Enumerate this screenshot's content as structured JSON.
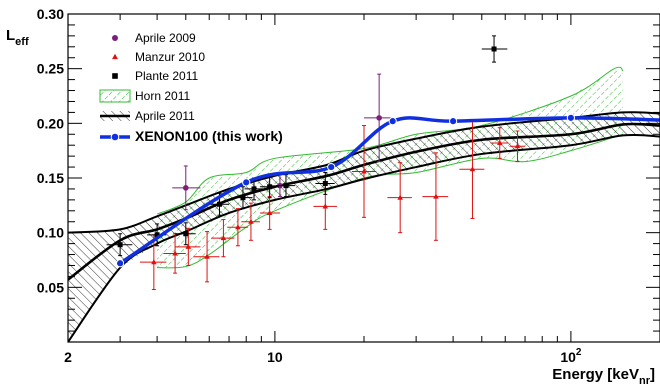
{
  "chart_data": {
    "type": "scatter",
    "xlabel": "Energy [keV",
    "xlabel_sub": "nr",
    "xlabel_end": "]",
    "ylabel": "L",
    "ylabel_sub": "eff",
    "x_scale": "log",
    "xlim": [
      2,
      200
    ],
    "ylim": [
      0.0,
      0.3
    ],
    "x_ticks": [
      {
        "value": 2,
        "label": "2"
      },
      {
        "value": 10,
        "label": "10"
      },
      {
        "value": 100,
        "label": "10",
        "sup": "2"
      }
    ],
    "y_ticks": [
      {
        "value": 0.05,
        "label": "0.05"
      },
      {
        "value": 0.1,
        "label": "0.10"
      },
      {
        "value": 0.15,
        "label": "0.15"
      },
      {
        "value": 0.2,
        "label": "0.20"
      },
      {
        "value": 0.25,
        "label": "0.25"
      },
      {
        "value": 0.3,
        "label": "0.30"
      }
    ],
    "legend_position": "top-left",
    "series": [
      {
        "name": "Aprile 2009",
        "kind": "points",
        "marker": "circle",
        "color": "#7a1f7a",
        "points": [
          {
            "x": 5.0,
            "y": 0.141,
            "xlo": 4.5,
            "xhi": 5.6,
            "ylo": 0.121,
            "yhi": 0.161
          },
          {
            "x": 10.4,
            "y": 0.143,
            "xlo": 9.6,
            "xhi": 11.2,
            "ylo": 0.133,
            "yhi": 0.153
          },
          {
            "x": 22.5,
            "y": 0.205,
            "xlo": 20.0,
            "xhi": 25.0,
            "ylo": 0.165,
            "yhi": 0.245
          }
        ]
      },
      {
        "name": "Manzur 2010",
        "kind": "points",
        "marker": "triangle",
        "color": "#e01010",
        "points": [
          {
            "x": 3.9,
            "y": 0.073,
            "xlo": 3.5,
            "xhi": 4.3,
            "ylo": 0.048,
            "yhi": 0.098
          },
          {
            "x": 4.6,
            "y": 0.081,
            "xlo": 4.2,
            "xhi": 5.0,
            "ylo": 0.063,
            "yhi": 0.099
          },
          {
            "x": 5.1,
            "y": 0.087,
            "xlo": 4.6,
            "xhi": 5.6,
            "ylo": 0.07,
            "yhi": 0.104
          },
          {
            "x": 5.9,
            "y": 0.078,
            "xlo": 5.3,
            "xhi": 6.5,
            "ylo": 0.055,
            "yhi": 0.101
          },
          {
            "x": 6.7,
            "y": 0.095,
            "xlo": 6.1,
            "xhi": 7.3,
            "ylo": 0.078,
            "yhi": 0.112
          },
          {
            "x": 7.5,
            "y": 0.105,
            "xlo": 6.9,
            "xhi": 8.1,
            "ylo": 0.088,
            "yhi": 0.122
          },
          {
            "x": 8.3,
            "y": 0.11,
            "xlo": 7.7,
            "xhi": 8.9,
            "ylo": 0.093,
            "yhi": 0.127
          },
          {
            "x": 9.6,
            "y": 0.118,
            "xlo": 8.9,
            "xhi": 10.4,
            "ylo": 0.103,
            "yhi": 0.133
          },
          {
            "x": 14.8,
            "y": 0.124,
            "xlo": 13.5,
            "xhi": 16.2,
            "ylo": 0.103,
            "yhi": 0.145
          },
          {
            "x": 20.0,
            "y": 0.156,
            "xlo": 18.2,
            "xhi": 22.0,
            "ylo": 0.114,
            "yhi": 0.198
          },
          {
            "x": 26.5,
            "y": 0.132,
            "xlo": 24.0,
            "xhi": 29.0,
            "ylo": 0.1,
            "yhi": 0.164
          },
          {
            "x": 35.0,
            "y": 0.133,
            "xlo": 31.5,
            "xhi": 38.5,
            "ylo": 0.093,
            "yhi": 0.173
          },
          {
            "x": 46.5,
            "y": 0.158,
            "xlo": 42.0,
            "xhi": 51.0,
            "ylo": 0.113,
            "yhi": 0.203
          },
          {
            "x": 57.5,
            "y": 0.182,
            "xlo": 53.5,
            "xhi": 61.5,
            "ylo": 0.168,
            "yhi": 0.196
          },
          {
            "x": 66.0,
            "y": 0.179,
            "xlo": 62.0,
            "xhi": 70.0,
            "ylo": 0.165,
            "yhi": 0.193
          }
        ]
      },
      {
        "name": "Plante 2011",
        "kind": "points",
        "marker": "square",
        "color": "#000000",
        "points": [
          {
            "x": 3.0,
            "y": 0.089,
            "xlo": 2.7,
            "xhi": 3.3,
            "ylo": 0.079,
            "yhi": 0.099
          },
          {
            "x": 4.0,
            "y": 0.098,
            "xlo": 3.7,
            "xhi": 4.3,
            "ylo": 0.088,
            "yhi": 0.108
          },
          {
            "x": 5.0,
            "y": 0.099,
            "xlo": 4.6,
            "xhi": 5.4,
            "ylo": 0.089,
            "yhi": 0.109
          },
          {
            "x": 6.5,
            "y": 0.126,
            "xlo": 6.0,
            "xhi": 7.0,
            "ylo": 0.116,
            "yhi": 0.136
          },
          {
            "x": 7.8,
            "y": 0.132,
            "xlo": 7.2,
            "xhi": 8.4,
            "ylo": 0.122,
            "yhi": 0.142
          },
          {
            "x": 8.5,
            "y": 0.14,
            "xlo": 7.9,
            "xhi": 9.1,
            "ylo": 0.13,
            "yhi": 0.15
          },
          {
            "x": 9.6,
            "y": 0.142,
            "xlo": 8.9,
            "xhi": 10.3,
            "ylo": 0.132,
            "yhi": 0.152
          },
          {
            "x": 10.9,
            "y": 0.143,
            "xlo": 10.1,
            "xhi": 11.7,
            "ylo": 0.133,
            "yhi": 0.153
          },
          {
            "x": 14.8,
            "y": 0.145,
            "xlo": 13.7,
            "xhi": 15.9,
            "ylo": 0.135,
            "yhi": 0.155
          },
          {
            "x": 55.0,
            "y": 0.268,
            "xlo": 50.0,
            "xhi": 61.0,
            "ylo": 0.256,
            "yhi": 0.28
          }
        ]
      },
      {
        "name": "Horn 2011",
        "kind": "band",
        "color": "#33bb33",
        "upper": [
          {
            "x": 4.0,
            "y": 0.117
          },
          {
            "x": 5.0,
            "y": 0.128
          },
          {
            "x": 6.0,
            "y": 0.15
          },
          {
            "x": 8.0,
            "y": 0.155
          },
          {
            "x": 10.0,
            "y": 0.168
          },
          {
            "x": 20.0,
            "y": 0.177
          },
          {
            "x": 30.0,
            "y": 0.19
          },
          {
            "x": 50.0,
            "y": 0.198
          },
          {
            "x": 100.0,
            "y": 0.225
          },
          {
            "x": 140.0,
            "y": 0.25
          },
          {
            "x": 150.0,
            "y": 0.248
          }
        ],
        "lower": [
          {
            "x": 4.0,
            "y": 0.068
          },
          {
            "x": 5.0,
            "y": 0.069
          },
          {
            "x": 6.0,
            "y": 0.08
          },
          {
            "x": 8.0,
            "y": 0.105
          },
          {
            "x": 10.0,
            "y": 0.12
          },
          {
            "x": 20.0,
            "y": 0.15
          },
          {
            "x": 30.0,
            "y": 0.155
          },
          {
            "x": 50.0,
            "y": 0.168
          },
          {
            "x": 70.0,
            "y": 0.165
          },
          {
            "x": 100.0,
            "y": 0.175
          },
          {
            "x": 150.0,
            "y": 0.19
          }
        ]
      },
      {
        "name": "Aprile 2011",
        "kind": "band_with_median",
        "color": "#000000",
        "upper": [
          {
            "x": 2.0,
            "y": 0.1
          },
          {
            "x": 3.0,
            "y": 0.103
          },
          {
            "x": 4.0,
            "y": 0.115
          },
          {
            "x": 5.0,
            "y": 0.125
          },
          {
            "x": 7.0,
            "y": 0.14
          },
          {
            "x": 10.0,
            "y": 0.152
          },
          {
            "x": 15.0,
            "y": 0.162
          },
          {
            "x": 20.0,
            "y": 0.175
          },
          {
            "x": 30.0,
            "y": 0.186
          },
          {
            "x": 50.0,
            "y": 0.197
          },
          {
            "x": 100.0,
            "y": 0.205
          },
          {
            "x": 150.0,
            "y": 0.21
          },
          {
            "x": 200.0,
            "y": 0.209
          }
        ],
        "median": [
          {
            "x": 2.0,
            "y": 0.057
          },
          {
            "x": 3.0,
            "y": 0.093
          },
          {
            "x": 4.0,
            "y": 0.103
          },
          {
            "x": 5.0,
            "y": 0.113
          },
          {
            "x": 7.0,
            "y": 0.13
          },
          {
            "x": 10.0,
            "y": 0.142
          },
          {
            "x": 15.0,
            "y": 0.152
          },
          {
            "x": 20.0,
            "y": 0.162
          },
          {
            "x": 30.0,
            "y": 0.174
          },
          {
            "x": 50.0,
            "y": 0.185
          },
          {
            "x": 100.0,
            "y": 0.19
          },
          {
            "x": 150.0,
            "y": 0.199
          },
          {
            "x": 200.0,
            "y": 0.198
          }
        ],
        "lower": [
          {
            "x": 2.0,
            "y": 0.0
          },
          {
            "x": 3.0,
            "y": 0.068
          },
          {
            "x": 4.0,
            "y": 0.09
          },
          {
            "x": 5.0,
            "y": 0.101
          },
          {
            "x": 7.0,
            "y": 0.118
          },
          {
            "x": 10.0,
            "y": 0.13
          },
          {
            "x": 15.0,
            "y": 0.14
          },
          {
            "x": 20.0,
            "y": 0.149
          },
          {
            "x": 30.0,
            "y": 0.16
          },
          {
            "x": 50.0,
            "y": 0.172
          },
          {
            "x": 100.0,
            "y": 0.18
          },
          {
            "x": 150.0,
            "y": 0.189
          },
          {
            "x": 200.0,
            "y": 0.188
          }
        ]
      },
      {
        "name": "XENON100 (this work)",
        "kind": "line_points",
        "marker": "circle",
        "color": "#1030e0",
        "points": [
          {
            "x": 3.0,
            "y": 0.072
          },
          {
            "x": 8.0,
            "y": 0.146
          },
          {
            "x": 15.5,
            "y": 0.16
          },
          {
            "x": 25.0,
            "y": 0.202
          },
          {
            "x": 40.0,
            "y": 0.202
          },
          {
            "x": 100.0,
            "y": 0.205
          },
          {
            "x": 200.0,
            "y": 0.203
          }
        ]
      }
    ]
  }
}
